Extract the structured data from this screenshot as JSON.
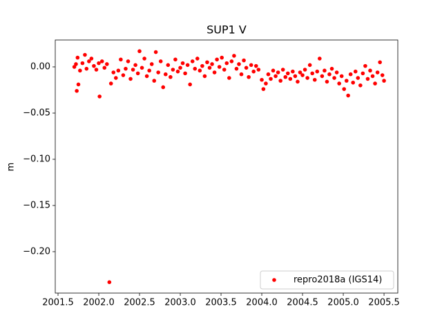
{
  "chart_data": {
    "type": "scatter",
    "title": "SUP1 V",
    "y_label": "m",
    "legend": "lower right",
    "xlim": [
      2001.466,
      2005.669
    ],
    "ylim": [
      -0.2448,
      0.0291
    ],
    "xticks": [
      2001.5,
      {
        "value": 2002,
        "label": "2002.0"
      },
      2002.5,
      {
        "value": 2003,
        "label": "2003.0"
      },
      2003.5,
      {
        "value": 2004,
        "label": "2004.0"
      },
      2004.5,
      {
        "value": 2005,
        "label": "2005.0"
      },
      2005.5
    ],
    "yticks": [
      {
        "value": 0,
        "label": "0.00"
      },
      {
        "value": -0.05,
        "label": "−0.05"
      },
      {
        "value": -0.1,
        "label": "−0.10"
      },
      {
        "value": -0.15,
        "label": "−0.15"
      },
      {
        "value": -0.2,
        "label": "−0.20"
      }
    ],
    "x": [
      2001.7,
      2001.72,
      2001.73,
      2001.74,
      2001.75,
      2001.77,
      2001.8,
      2001.83,
      2001.85,
      2001.88,
      2001.91,
      2001.94,
      2001.97,
      2002.0,
      2002.01,
      2002.04,
      2002.07,
      2002.1,
      2002.13,
      2002.15,
      2002.18,
      2002.21,
      2002.24,
      2002.27,
      2002.3,
      2002.33,
      2002.36,
      2002.39,
      2002.42,
      2002.45,
      2002.48,
      2002.5,
      2002.53,
      2002.56,
      2002.59,
      2002.62,
      2002.65,
      2002.68,
      2002.7,
      2002.73,
      2002.76,
      2002.79,
      2002.82,
      2002.85,
      2002.88,
      2002.91,
      2002.94,
      2002.97,
      2003.0,
      2003.03,
      2003.06,
      2003.09,
      2003.12,
      2003.15,
      2003.18,
      2003.21,
      2003.24,
      2003.27,
      2003.3,
      2003.33,
      2003.36,
      2003.39,
      2003.42,
      2003.45,
      2003.48,
      2003.51,
      2003.54,
      2003.57,
      2003.6,
      2003.63,
      2003.66,
      2003.69,
      2003.72,
      2003.75,
      2003.78,
      2003.81,
      2003.84,
      2003.87,
      2003.9,
      2003.93,
      2003.96,
      2004.0,
      2004.02,
      2004.05,
      2004.08,
      2004.11,
      2004.14,
      2004.17,
      2004.2,
      2004.23,
      2004.26,
      2004.29,
      2004.32,
      2004.35,
      2004.38,
      2004.41,
      2004.44,
      2004.47,
      2004.5,
      2004.53,
      2004.56,
      2004.59,
      2004.62,
      2004.65,
      2004.68,
      2004.71,
      2004.74,
      2004.77,
      2004.8,
      2004.83,
      2004.86,
      2004.89,
      2004.92,
      2004.95,
      2004.98,
      2005.01,
      2005.04,
      2005.06,
      2005.09,
      2005.12,
      2005.15,
      2005.18,
      2005.21,
      2005.24,
      2005.27,
      2005.3,
      2005.33,
      2005.36,
      2005.39,
      2005.42,
      2005.45,
      2005.48,
      2005.5
    ],
    "series": [
      {
        "name": "repro2018a (IGS14)",
        "color": "#ff0000",
        "values": [
          0.0,
          0.003,
          -0.026,
          0.01,
          -0.019,
          -0.004,
          0.004,
          0.013,
          -0.002,
          0.006,
          0.009,
          0.001,
          -0.003,
          0.004,
          -0.032,
          0.006,
          -0.001,
          0.003,
          -0.233,
          -0.018,
          -0.006,
          -0.012,
          -0.004,
          0.008,
          -0.009,
          -0.002,
          0.006,
          -0.013,
          -0.003,
          0.002,
          -0.007,
          0.017,
          -0.001,
          0.009,
          -0.01,
          -0.004,
          0.003,
          -0.015,
          0.016,
          -0.006,
          0.006,
          -0.022,
          -0.008,
          0.002,
          -0.011,
          -0.003,
          0.008,
          -0.005,
          -0.001,
          0.004,
          -0.007,
          0.002,
          -0.019,
          0.006,
          -0.002,
          0.009,
          -0.004,
          0.001,
          -0.01,
          0.005,
          -0.001,
          0.003,
          -0.006,
          0.008,
          0.0,
          0.01,
          -0.003,
          0.004,
          -0.012,
          0.006,
          0.012,
          -0.002,
          0.003,
          -0.008,
          0.007,
          -0.001,
          -0.011,
          0.002,
          -0.005,
          0.001,
          -0.003,
          -0.014,
          -0.024,
          -0.018,
          -0.008,
          -0.013,
          -0.004,
          -0.01,
          -0.006,
          -0.015,
          -0.003,
          -0.011,
          -0.007,
          -0.013,
          -0.005,
          -0.01,
          -0.016,
          -0.006,
          -0.009,
          -0.003,
          -0.012,
          0.002,
          -0.007,
          -0.014,
          -0.005,
          0.009,
          -0.01,
          -0.004,
          -0.016,
          -0.008,
          -0.002,
          -0.012,
          -0.006,
          -0.018,
          -0.01,
          -0.024,
          -0.015,
          -0.031,
          -0.008,
          -0.017,
          -0.005,
          -0.012,
          -0.02,
          -0.007,
          0.001,
          -0.013,
          -0.004,
          -0.01,
          -0.018,
          -0.006,
          0.005,
          -0.009,
          -0.015
        ]
      }
    ]
  }
}
